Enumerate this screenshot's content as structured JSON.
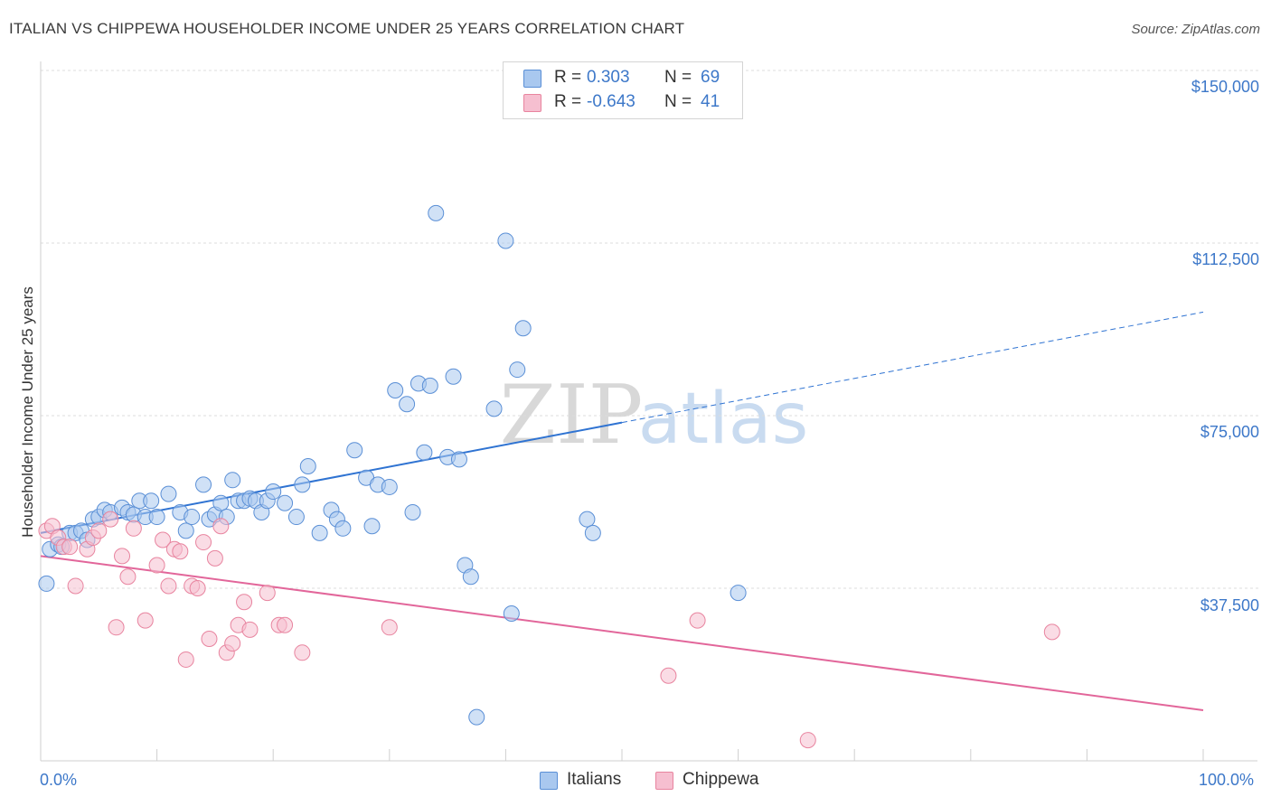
{
  "title": "ITALIAN VS CHIPPEWA HOUSEHOLDER INCOME UNDER 25 YEARS CORRELATION CHART",
  "source": "Source: ZipAtlas.com",
  "watermark": {
    "zip": "ZIP",
    "atlas": "atlas"
  },
  "legend": {
    "r_label": "R =",
    "n_label": "N =",
    "rows": [
      {
        "r": "0.303",
        "n": "69",
        "color": "#a9c8ef",
        "stroke": "#5a8fd6"
      },
      {
        "r": "-0.643",
        "n": "41",
        "color": "#f6bfd0",
        "stroke": "#e8849f"
      }
    ]
  },
  "chart_data": {
    "type": "scatter",
    "xlabel": "",
    "ylabel": "Householder Income Under 25 years",
    "xlim": [
      0,
      100
    ],
    "ylim": [
      0,
      155000
    ],
    "x_tick_labels": [
      "0.0%",
      "100.0%"
    ],
    "y_ticks": [
      37500,
      75000,
      112500,
      150000
    ],
    "y_tick_labels": [
      "$37,500",
      "$75,000",
      "$112,500",
      "$150,000"
    ],
    "grid": true,
    "legend_position": "top-center",
    "series": [
      {
        "name": "Italians",
        "color": "#5a8fd6",
        "fill": "#a9c8ef",
        "trend": {
          "x0": 0,
          "y0": 49500,
          "x1": 50,
          "y1": 73500,
          "dashed_to_x": 100,
          "dashed_to_y": 97500
        },
        "points": [
          [
            0.5,
            38500
          ],
          [
            0.8,
            46000
          ],
          [
            1.5,
            47000
          ],
          [
            1.8,
            46500
          ],
          [
            2.5,
            49500
          ],
          [
            3,
            49500
          ],
          [
            3.5,
            50000
          ],
          [
            4,
            48000
          ],
          [
            4.5,
            52500
          ],
          [
            5,
            53000
          ],
          [
            5.5,
            54500
          ],
          [
            6,
            54000
          ],
          [
            7,
            55000
          ],
          [
            7.5,
            54000
          ],
          [
            8,
            53500
          ],
          [
            8.5,
            56500
          ],
          [
            9,
            53000
          ],
          [
            9.5,
            56500
          ],
          [
            10,
            53000
          ],
          [
            11,
            58000
          ],
          [
            12,
            54000
          ],
          [
            12.5,
            50000
          ],
          [
            13,
            53000
          ],
          [
            14,
            60000
          ],
          [
            14.5,
            52500
          ],
          [
            15,
            53500
          ],
          [
            15.5,
            56000
          ],
          [
            16,
            53000
          ],
          [
            16.5,
            61000
          ],
          [
            17,
            56500
          ],
          [
            17.5,
            56500
          ],
          [
            18,
            57000
          ],
          [
            18.5,
            56500
          ],
          [
            19,
            54000
          ],
          [
            19.5,
            56500
          ],
          [
            20,
            58500
          ],
          [
            21,
            56000
          ],
          [
            22,
            53000
          ],
          [
            22.5,
            60000
          ],
          [
            23,
            64000
          ],
          [
            24,
            49500
          ],
          [
            25,
            54500
          ],
          [
            25.5,
            52500
          ],
          [
            26,
            50500
          ],
          [
            27,
            67500
          ],
          [
            28,
            61500
          ],
          [
            28.5,
            51000
          ],
          [
            29,
            60000
          ],
          [
            30,
            59500
          ],
          [
            30.5,
            80500
          ],
          [
            31.5,
            77500
          ],
          [
            32,
            54000
          ],
          [
            32.5,
            82000
          ],
          [
            33,
            67000
          ],
          [
            33.5,
            81500
          ],
          [
            34,
            119000
          ],
          [
            35,
            66000
          ],
          [
            35.5,
            83500
          ],
          [
            36,
            65500
          ],
          [
            36.5,
            42500
          ],
          [
            37,
            40000
          ],
          [
            37.5,
            9500
          ],
          [
            39,
            76500
          ],
          [
            40,
            113000
          ],
          [
            40.5,
            32000
          ],
          [
            41,
            85000
          ],
          [
            41.5,
            94000
          ],
          [
            47,
            52500
          ],
          [
            47.5,
            49500
          ],
          [
            60,
            36500
          ]
        ]
      },
      {
        "name": "Chippewa",
        "color": "#e8849f",
        "fill": "#f6bfd0",
        "trend": {
          "x0": 0,
          "y0": 44500,
          "x1": 100,
          "y1": 11000
        },
        "points": [
          [
            0.5,
            50000
          ],
          [
            1,
            51000
          ],
          [
            1.5,
            48500
          ],
          [
            2,
            46500
          ],
          [
            2.5,
            46500
          ],
          [
            3,
            38000
          ],
          [
            4,
            46000
          ],
          [
            4.5,
            48500
          ],
          [
            5,
            50000
          ],
          [
            6,
            52500
          ],
          [
            6.5,
            29000
          ],
          [
            7,
            44500
          ],
          [
            7.5,
            40000
          ],
          [
            8,
            50500
          ],
          [
            9,
            30500
          ],
          [
            10,
            42500
          ],
          [
            10.5,
            48000
          ],
          [
            11,
            38000
          ],
          [
            11.5,
            46000
          ],
          [
            12,
            45500
          ],
          [
            12.5,
            22000
          ],
          [
            13,
            38000
          ],
          [
            13.5,
            37500
          ],
          [
            14,
            47500
          ],
          [
            14.5,
            26500
          ],
          [
            15,
            44000
          ],
          [
            15.5,
            51000
          ],
          [
            16,
            23500
          ],
          [
            16.5,
            25500
          ],
          [
            17,
            29500
          ],
          [
            17.5,
            34500
          ],
          [
            18,
            28500
          ],
          [
            19.5,
            36500
          ],
          [
            20.5,
            29500
          ],
          [
            21,
            29500
          ],
          [
            22.5,
            23500
          ],
          [
            30,
            29000
          ],
          [
            54,
            18500
          ],
          [
            56.5,
            30500
          ],
          [
            66,
            4500
          ],
          [
            87,
            28000
          ]
        ]
      }
    ]
  },
  "bottom_legend": [
    {
      "label": "Italians",
      "color": "#a9c8ef",
      "stroke": "#5a8fd6"
    },
    {
      "label": "Chippewa",
      "color": "#f6bfd0",
      "stroke": "#e8849f"
    }
  ]
}
